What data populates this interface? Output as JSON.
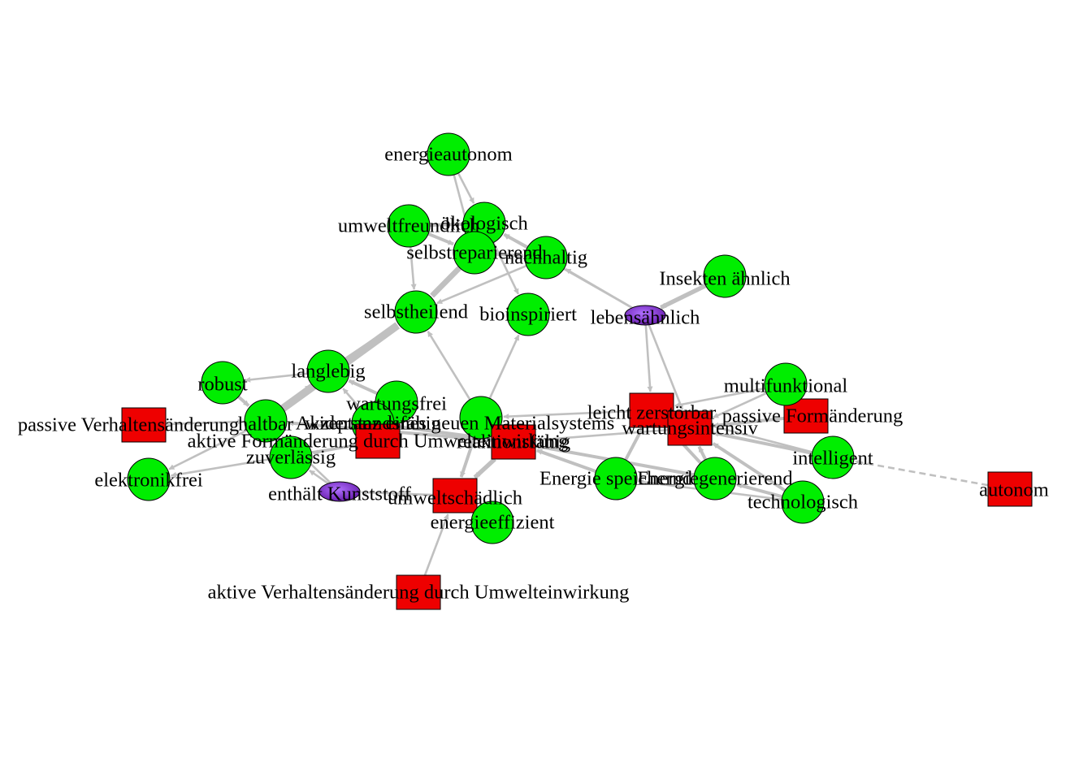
{
  "colors": {
    "circle_node": "#00ee00",
    "square_node": "#ee0000",
    "ellipse_node": "#8a2be2",
    "edge": "#c0c0c0",
    "node_stroke": "#000000",
    "background": "#ffffff"
  },
  "nodes": [
    {
      "id": "energieautonom",
      "label": "energieautonom",
      "shape": "circle"
    },
    {
      "id": "oekologisch",
      "label": "ökologisch",
      "shape": "circle"
    },
    {
      "id": "umweltfreundlich",
      "label": "umweltfreundlich",
      "shape": "circle"
    },
    {
      "id": "selbstreparierend",
      "label": "selbstreparierend",
      "shape": "circle"
    },
    {
      "id": "nachhaltig",
      "label": "nachhaltig",
      "shape": "circle"
    },
    {
      "id": "insekten",
      "label": "Insekten ähnlich",
      "shape": "circle"
    },
    {
      "id": "selbstheilend",
      "label": "selbstheilend",
      "shape": "circle"
    },
    {
      "id": "bioinspiriert",
      "label": "bioinspiriert",
      "shape": "circle"
    },
    {
      "id": "lebensaehnlich",
      "label": "lebensähnlich",
      "shape": "ellipse"
    },
    {
      "id": "langlebig",
      "label": "langlebig",
      "shape": "circle"
    },
    {
      "id": "robust",
      "label": "robust",
      "shape": "circle"
    },
    {
      "id": "wartungsfrei",
      "label": "wartungsfrei",
      "shape": "circle"
    },
    {
      "id": "widerstandsfaehig",
      "label": "widerstandsfähig",
      "shape": "circle"
    },
    {
      "id": "akzeptanz",
      "label": "Akzeptanz eines neuen Materialsystems",
      "shape": "circle"
    },
    {
      "id": "passive_verhalten",
      "label": "passive Verhaltensänderung",
      "shape": "square"
    },
    {
      "id": "haltbar",
      "label": "haltbar",
      "shape": "circle"
    },
    {
      "id": "aktive_form",
      "label": "aktive Formänderung durch Umwelteinwirkung",
      "shape": "square"
    },
    {
      "id": "reaktionsfaehig",
      "label": "reaktionsfähig",
      "shape": "square"
    },
    {
      "id": "zuverlaessig",
      "label": "zuverlässig",
      "shape": "circle"
    },
    {
      "id": "elektronikfrei",
      "label": "elektronikfrei",
      "shape": "circle"
    },
    {
      "id": "kunststoff",
      "label": "enthält Kunststoff",
      "shape": "ellipse"
    },
    {
      "id": "umweltschaedlich",
      "label": "umweltschädlich",
      "shape": "square"
    },
    {
      "id": "energieeffizient",
      "label": "energieeffizient",
      "shape": "circle"
    },
    {
      "id": "aktive_verhalten",
      "label": "aktive Verhaltensänderung durch Umwelteinwirkung",
      "shape": "square"
    },
    {
      "id": "leicht_zerstoerbar",
      "label": "leicht zerstörbar",
      "shape": "square"
    },
    {
      "id": "wartungsintensiv",
      "label": "wartungsintensiv",
      "shape": "square"
    },
    {
      "id": "passive_form",
      "label": "passive Formänderung",
      "shape": "square"
    },
    {
      "id": "multifunktional",
      "label": "multifunktional",
      "shape": "circle"
    },
    {
      "id": "intelligent",
      "label": "intelligent",
      "shape": "circle"
    },
    {
      "id": "energie_speichernd",
      "label": "Energie speichernd",
      "shape": "circle"
    },
    {
      "id": "energiegenerierend",
      "label": "Energiegenerierend",
      "shape": "circle"
    },
    {
      "id": "technologisch",
      "label": "technologisch",
      "shape": "circle"
    },
    {
      "id": "autonom",
      "label": "autonom",
      "shape": "square"
    }
  ],
  "edges": [
    {
      "from": "energieautonom",
      "to": "oekologisch",
      "weight": 1
    },
    {
      "from": "energieautonom",
      "to": "selbstreparierend",
      "weight": 1
    },
    {
      "from": "umweltfreundlich",
      "to": "selbstheilend",
      "weight": 1
    },
    {
      "from": "umweltfreundlich",
      "to": "oekologisch",
      "weight": 2
    },
    {
      "from": "oekologisch",
      "to": "selbstreparierend",
      "weight": 2
    },
    {
      "from": "selbstreparierend",
      "to": "selbstheilend",
      "weight": 4
    },
    {
      "from": "umweltfreundlich",
      "to": "selbstreparierend",
      "weight": 2
    },
    {
      "from": "nachhaltig",
      "to": "oekologisch",
      "weight": 2
    },
    {
      "from": "nachhaltig",
      "to": "selbstheilend",
      "weight": 1
    },
    {
      "from": "selbstreparierend",
      "to": "nachhaltig",
      "weight": 2
    },
    {
      "from": "lebensaehnlich",
      "to": "nachhaltig",
      "weight": 1
    },
    {
      "from": "lebensaehnlich",
      "to": "oekologisch",
      "weight": 1
    },
    {
      "from": "insekten",
      "to": "lebensaehnlich",
      "weight": 3
    },
    {
      "from": "lebensaehnlich",
      "to": "leicht_zerstoerbar",
      "weight": 1
    },
    {
      "from": "lebensaehnlich",
      "to": "wartungsintensiv",
      "weight": 1
    },
    {
      "from": "oekologisch",
      "to": "bioinspiriert",
      "weight": 1
    },
    {
      "from": "haltbar",
      "to": "selbstheilend",
      "weight": 6
    },
    {
      "from": "langlebig",
      "to": "selbstheilend",
      "weight": 3
    },
    {
      "from": "langlebig",
      "to": "robust",
      "weight": 1
    },
    {
      "from": "robust",
      "to": "haltbar",
      "weight": 2
    },
    {
      "from": "wartungsfrei",
      "to": "langlebig",
      "weight": 2
    },
    {
      "from": "haltbar",
      "to": "langlebig",
      "weight": 2
    },
    {
      "from": "widerstandsfaehig",
      "to": "langlebig",
      "weight": 1
    },
    {
      "from": "akzeptanz",
      "to": "selbstheilend",
      "weight": 1
    },
    {
      "from": "akzeptanz",
      "to": "bioinspiriert",
      "weight": 1
    },
    {
      "from": "passive_verhalten",
      "to": "haltbar",
      "weight": 1
    },
    {
      "from": "aktive_form",
      "to": "zuverlaessig",
      "weight": 1
    },
    {
      "from": "aktive_form",
      "to": "elektronikfrei",
      "weight": 1
    },
    {
      "from": "haltbar",
      "to": "elektronikfrei",
      "weight": 1
    },
    {
      "from": "kunststoff",
      "to": "haltbar",
      "weight": 1
    },
    {
      "from": "kunststoff",
      "to": "zuverlaessig",
      "weight": 1
    },
    {
      "from": "aktive_form",
      "to": "wartungsfrei",
      "weight": 1
    },
    {
      "from": "reaktionsfaehig",
      "to": "akzeptanz",
      "weight": 3
    },
    {
      "from": "reaktionsfaehig",
      "to": "haltbar",
      "weight": 2
    },
    {
      "from": "reaktionsfaehig",
      "to": "widerstandsfaehig",
      "weight": 2
    },
    {
      "from": "akzeptanz",
      "to": "umweltschaedlich",
      "weight": 2
    },
    {
      "from": "reaktionsfaehig",
      "to": "umweltschaedlich",
      "weight": 3
    },
    {
      "from": "umweltschaedlich",
      "to": "kunststoff",
      "weight": 1
    },
    {
      "from": "aktive_verhalten",
      "to": "umweltschaedlich",
      "weight": 1
    },
    {
      "from": "energieeffizient",
      "to": "umweltschaedlich",
      "weight": 1
    },
    {
      "from": "energie_speichernd",
      "to": "reaktionsfaehig",
      "weight": 2
    },
    {
      "from": "energiegenerierend",
      "to": "reaktionsfaehig",
      "weight": 2
    },
    {
      "from": "energie_speichernd",
      "to": "leicht_zerstoerbar",
      "weight": 2
    },
    {
      "from": "energiegenerierend",
      "to": "wartungsintensiv",
      "weight": 2
    },
    {
      "from": "energiegenerierend",
      "to": "leicht_zerstoerbar",
      "weight": 2
    },
    {
      "from": "passive_form",
      "to": "wartungsintensiv",
      "weight": 2
    },
    {
      "from": "multifunktional",
      "to": "leicht_zerstoerbar",
      "weight": 1
    },
    {
      "from": "multifunktional",
      "to": "wartungsintensiv",
      "weight": 1
    },
    {
      "from": "intelligent",
      "to": "wartungsintensiv",
      "weight": 2
    },
    {
      "from": "intelligent",
      "to": "leicht_zerstoerbar",
      "weight": 1
    },
    {
      "from": "technologisch",
      "to": "wartungsintensiv",
      "weight": 2
    },
    {
      "from": "technologisch",
      "to": "energiegenerierend",
      "weight": 2
    },
    {
      "from": "technologisch",
      "to": "energie_speichernd",
      "weight": 1
    },
    {
      "from": "leicht_zerstoerbar",
      "to": "akzeptanz",
      "weight": 1
    },
    {
      "from": "wartungsintensiv",
      "to": "reaktionsfaehig",
      "weight": 1
    },
    {
      "from": "autonom",
      "to": "intelligent",
      "weight": 1,
      "dashed": true
    }
  ]
}
